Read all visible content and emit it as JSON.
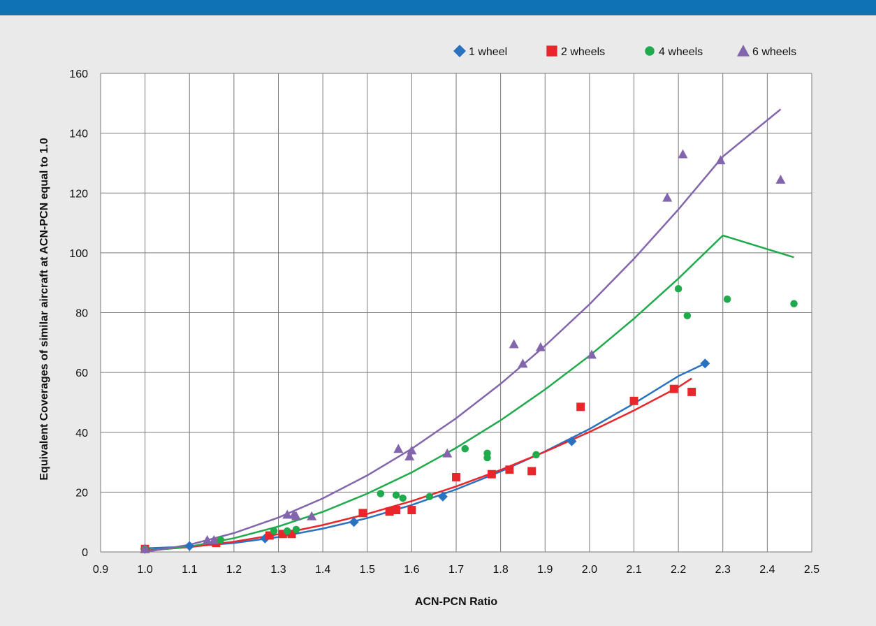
{
  "colors": {
    "band": "#0f72b5",
    "background": "#eaeaea",
    "plot_background": "#ffffff",
    "grid": "#7a7a7a"
  },
  "chart_data": {
    "type": "scatter",
    "title": "",
    "xlabel": "ACN-PCN Ratio",
    "ylabel": "Equivalent Coverages of similar aircraft at ACN-PCN equal to 1.0",
    "xlim": [
      0.9,
      2.5
    ],
    "ylim": [
      0,
      160
    ],
    "x_ticks": [
      "0.9",
      "1.0",
      "1.1",
      "1.2",
      "1.3",
      "1.4",
      "1.5",
      "1.6",
      "1.7",
      "1.8",
      "1.9",
      "2.0",
      "2.1",
      "2.2",
      "2.3",
      "2.4",
      "2.5"
    ],
    "y_ticks": [
      "0",
      "20",
      "40",
      "60",
      "80",
      "100",
      "120",
      "140",
      "160"
    ],
    "grid": true,
    "legend_position": "top-right",
    "series": [
      {
        "name": "1 wheel",
        "color": "#2a72c0",
        "marker": "diamond",
        "points": [
          [
            1.0,
            1
          ],
          [
            1.1,
            2
          ],
          [
            1.27,
            4.5
          ],
          [
            1.47,
            10
          ],
          [
            1.67,
            18.5
          ],
          [
            1.96,
            37
          ],
          [
            2.26,
            63
          ]
        ],
        "trend": [
          [
            1.0,
            1.2
          ],
          [
            1.1,
            1.8
          ],
          [
            1.2,
            3.0
          ],
          [
            1.3,
            5.0
          ],
          [
            1.4,
            7.8
          ],
          [
            1.5,
            11.3
          ],
          [
            1.6,
            15.7
          ],
          [
            1.7,
            20.9
          ],
          [
            1.8,
            26.9
          ],
          [
            1.9,
            33.6
          ],
          [
            2.0,
            41.1
          ],
          [
            2.1,
            49.6
          ],
          [
            2.2,
            58.8
          ],
          [
            2.26,
            63.0
          ]
        ]
      },
      {
        "name": "2 wheels",
        "color": "#e8262b",
        "marker": "square",
        "points": [
          [
            1.0,
            1
          ],
          [
            1.16,
            3
          ],
          [
            1.28,
            5.5
          ],
          [
            1.31,
            6
          ],
          [
            1.33,
            6
          ],
          [
            1.49,
            13
          ],
          [
            1.55,
            13.5
          ],
          [
            1.565,
            14
          ],
          [
            1.6,
            14
          ],
          [
            1.7,
            25
          ],
          [
            1.78,
            26
          ],
          [
            1.82,
            27.5
          ],
          [
            1.87,
            27
          ],
          [
            1.98,
            48.5
          ],
          [
            2.1,
            50.5
          ],
          [
            2.19,
            54.5
          ],
          [
            2.23,
            53.5
          ]
        ],
        "trend": [
          [
            1.0,
            0.5
          ],
          [
            1.1,
            1.6
          ],
          [
            1.2,
            3.4
          ],
          [
            1.3,
            5.9
          ],
          [
            1.4,
            9.0
          ],
          [
            1.5,
            12.7
          ],
          [
            1.6,
            17.0
          ],
          [
            1.7,
            21.9
          ],
          [
            1.8,
            27.4
          ],
          [
            1.9,
            33.5
          ],
          [
            2.0,
            40.1
          ],
          [
            2.1,
            47.3
          ],
          [
            2.2,
            55.1
          ],
          [
            2.23,
            58.0
          ]
        ]
      },
      {
        "name": "4 wheels",
        "color": "#1faa4b",
        "marker": "circle",
        "points": [
          [
            1.0,
            1
          ],
          [
            1.17,
            4
          ],
          [
            1.29,
            7
          ],
          [
            1.32,
            7
          ],
          [
            1.34,
            7.5
          ],
          [
            1.53,
            19.5
          ],
          [
            1.565,
            19
          ],
          [
            1.58,
            18
          ],
          [
            1.64,
            18.5
          ],
          [
            1.72,
            34.5
          ],
          [
            1.77,
            33
          ],
          [
            1.77,
            31.5
          ],
          [
            1.88,
            32.5
          ],
          [
            2.2,
            88
          ],
          [
            2.22,
            79
          ],
          [
            2.31,
            84.5
          ],
          [
            2.46,
            83
          ]
        ],
        "trend": [
          [
            1.0,
            0.3
          ],
          [
            1.1,
            1.8
          ],
          [
            1.2,
            4.6
          ],
          [
            1.3,
            8.5
          ],
          [
            1.4,
            13.4
          ],
          [
            1.5,
            19.5
          ],
          [
            1.6,
            26.6
          ],
          [
            1.7,
            34.8
          ],
          [
            1.8,
            44.0
          ],
          [
            1.9,
            54.3
          ],
          [
            2.0,
            65.6
          ],
          [
            2.1,
            78.0
          ],
          [
            2.2,
            91.4
          ],
          [
            2.3,
            105.8
          ],
          [
            2.46,
            98.5
          ]
        ]
      },
      {
        "name": "6 wheels",
        "color": "#8265ad",
        "marker": "triangle",
        "points": [
          [
            1.0,
            1
          ],
          [
            1.14,
            4
          ],
          [
            1.155,
            4
          ],
          [
            1.32,
            12.5
          ],
          [
            1.335,
            12.5
          ],
          [
            1.34,
            12
          ],
          [
            1.375,
            12
          ],
          [
            1.57,
            34.5
          ],
          [
            1.595,
            32
          ],
          [
            1.6,
            34
          ],
          [
            1.68,
            33
          ],
          [
            1.83,
            69.5
          ],
          [
            1.85,
            63
          ],
          [
            1.89,
            68.5
          ],
          [
            2.005,
            66
          ],
          [
            2.175,
            118.5
          ],
          [
            2.21,
            133
          ],
          [
            2.295,
            131
          ],
          [
            2.43,
            124.5
          ]
        ],
        "trend": [
          [
            1.0,
            0.0
          ],
          [
            1.1,
            2.4
          ],
          [
            1.2,
            6.3
          ],
          [
            1.3,
            11.5
          ],
          [
            1.4,
            17.9
          ],
          [
            1.5,
            25.6
          ],
          [
            1.6,
            34.5
          ],
          [
            1.7,
            44.7
          ],
          [
            1.8,
            56.2
          ],
          [
            1.9,
            68.9
          ],
          [
            2.0,
            82.8
          ],
          [
            2.1,
            98.0
          ],
          [
            2.2,
            114.5
          ],
          [
            2.3,
            132.2
          ],
          [
            2.43,
            148.0
          ]
        ]
      }
    ]
  }
}
